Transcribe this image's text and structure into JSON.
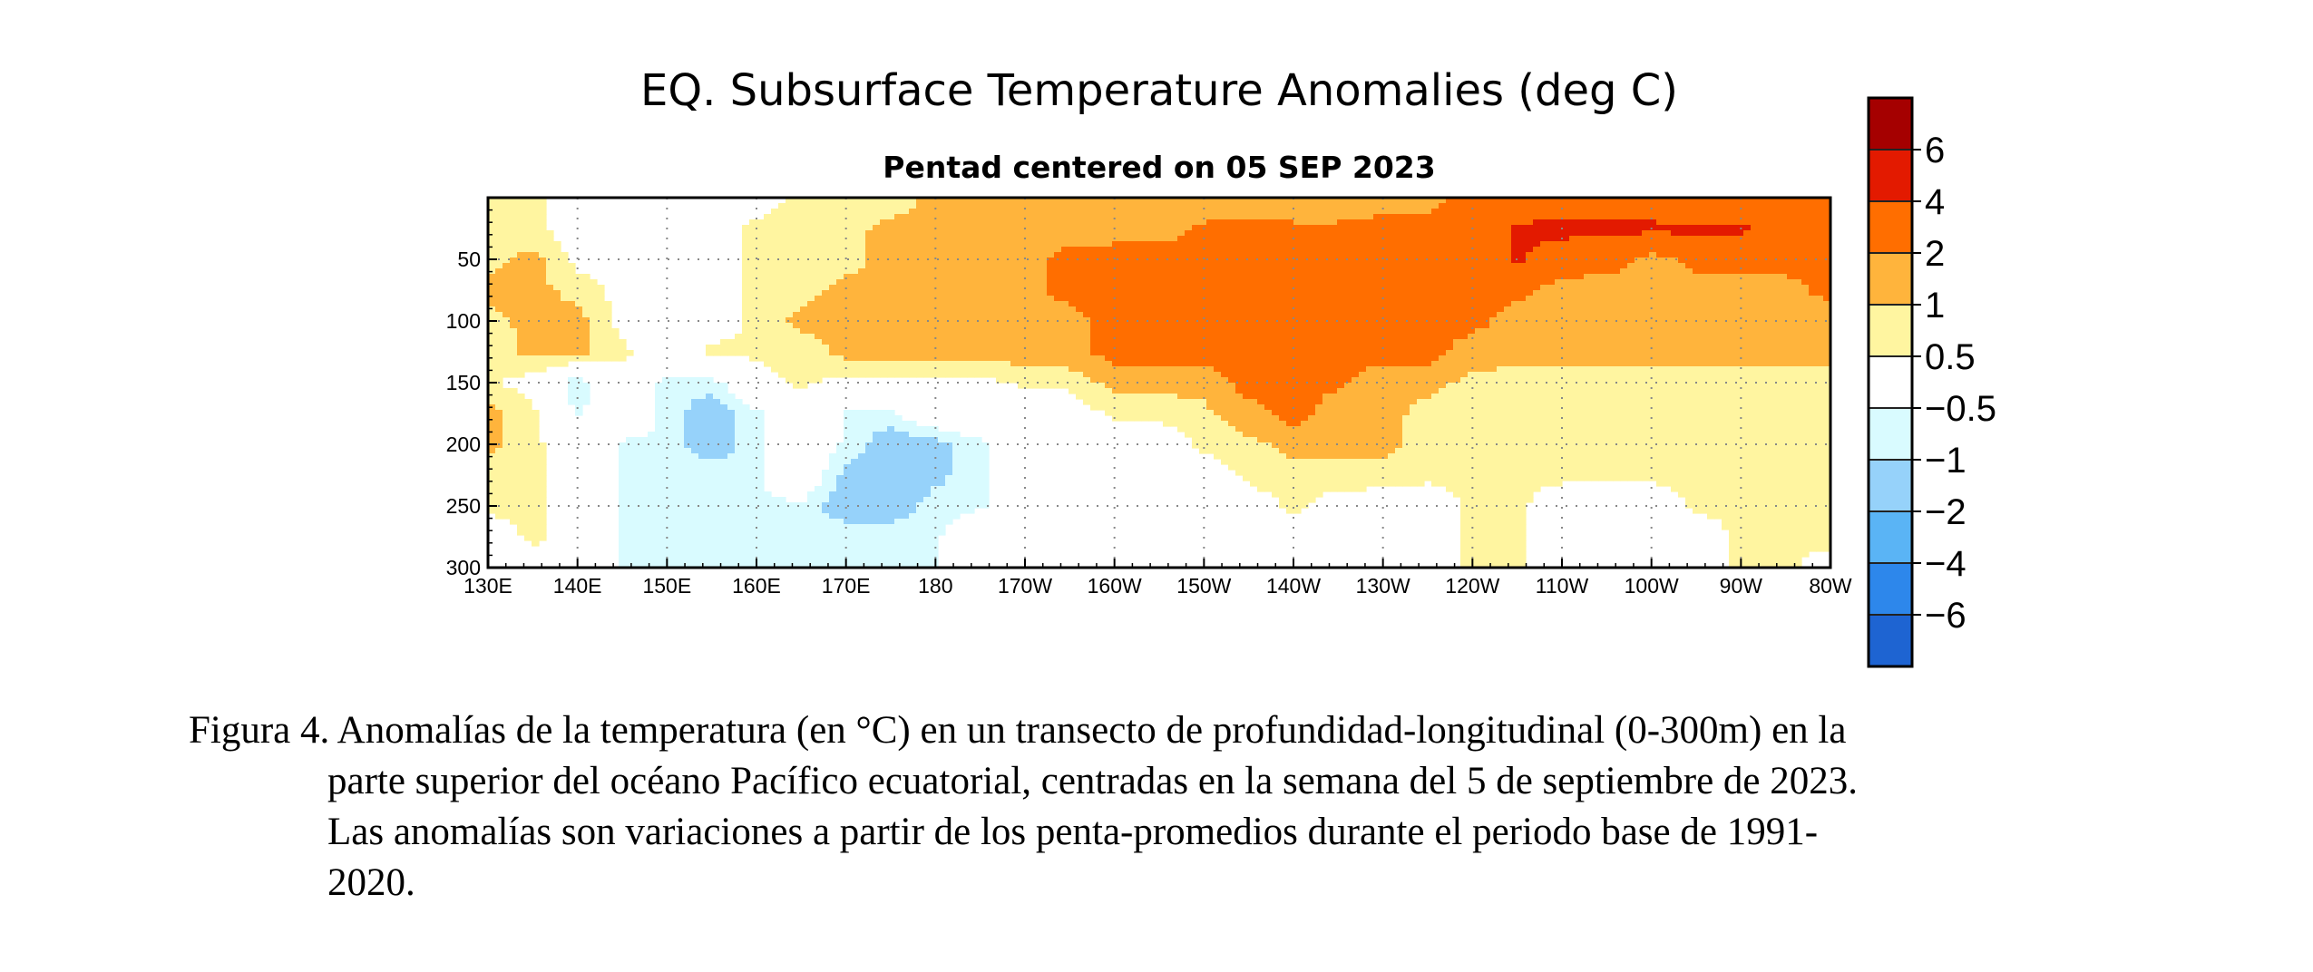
{
  "chart_data": {
    "type": "heatmap",
    "title": "EQ. Subsurface Temperature Anomalies (deg C)",
    "subtitle": "Pentad centered on 05 SEP 2023",
    "x_ticks": [
      "130E",
      "140E",
      "150E",
      "160E",
      "170E",
      "180",
      "170W",
      "160W",
      "150W",
      "140W",
      "130W",
      "120W",
      "110W",
      "100W",
      "90W",
      "80W"
    ],
    "x_tick_values": [
      130,
      140,
      150,
      160,
      170,
      180,
      190,
      200,
      210,
      220,
      230,
      240,
      250,
      260,
      270,
      280
    ],
    "y_ticks": [
      "50",
      "100",
      "150",
      "200",
      "250",
      "300"
    ],
    "y_tick_values": [
      50,
      100,
      150,
      200,
      250,
      300
    ],
    "xlim": [
      130,
      280
    ],
    "ylim": [
      0,
      300
    ],
    "y_inverted": true,
    "grid": true,
    "colorbar": {
      "labels": [
        "6",
        "4",
        "2",
        "1",
        "0.5",
        "−0.5",
        "−1",
        "−2",
        "−4",
        "−6"
      ],
      "colors": [
        "#a50000",
        "#e31a00",
        "#ff6e00",
        "#ffb43c",
        "#fff5a0",
        "#ffffff",
        "#d9fbff",
        "#96d2fa",
        "#5ab4f5",
        "#2d87eb",
        "#1e64d2"
      ],
      "bounds": [
        -6,
        -4,
        -2,
        -1,
        -0.5,
        0.5,
        1,
        2,
        4,
        6
      ]
    },
    "depths": [
      0,
      25,
      50,
      75,
      100,
      125,
      150,
      175,
      200,
      225,
      250,
      275,
      300
    ],
    "longitudes": [
      130,
      135,
      140,
      145,
      150,
      155,
      160,
      165,
      170,
      175,
      180,
      185,
      190,
      195,
      200,
      205,
      210,
      215,
      220,
      225,
      230,
      235,
      240,
      245,
      250,
      255,
      260,
      265,
      270,
      275,
      280
    ],
    "anomaly_grid": [
      [
        0.6,
        0.6,
        0.3,
        0.2,
        0.2,
        0.2,
        0.3,
        0.6,
        0.6,
        0.6,
        1.2,
        1.2,
        1.5,
        1.5,
        1.2,
        1.2,
        1.3,
        1.3,
        1.2,
        1.2,
        1.3,
        1.5,
        2.5,
        2.6,
        2.6,
        2.6,
        2.5,
        2.5,
        2.5,
        2.5,
        2.5
      ],
      [
        0.6,
        0.6,
        0.2,
        0.2,
        0.2,
        0.3,
        0.6,
        0.6,
        0.8,
        1.2,
        1.2,
        1.2,
        1.3,
        1.3,
        1.5,
        1.5,
        2.2,
        2.3,
        2.2,
        2.2,
        2.5,
        2.5,
        2.8,
        4.3,
        4.5,
        4.4,
        4.4,
        4.3,
        4.3,
        2.5,
        2.5
      ],
      [
        0.8,
        1.2,
        0.3,
        0.2,
        0.2,
        0.2,
        0.6,
        0.6,
        0.8,
        1.2,
        1.2,
        1.3,
        1.5,
        2.5,
        2.5,
        2.5,
        2.5,
        2.5,
        2.5,
        2.5,
        2.5,
        2.5,
        2.5,
        4.2,
        3.0,
        2.8,
        1.5,
        2.5,
        2.5,
        2.5,
        2.5
      ],
      [
        1.2,
        1.2,
        0.8,
        0.3,
        0.2,
        0.2,
        0.6,
        0.8,
        1.2,
        1.2,
        1.2,
        1.2,
        1.5,
        2.5,
        2.5,
        2.5,
        2.5,
        2.5,
        2.5,
        2.5,
        2.5,
        2.5,
        2.5,
        2.5,
        1.3,
        1.3,
        1.3,
        1.2,
        1.2,
        1.5,
        2.5
      ],
      [
        0.8,
        1.2,
        1.2,
        0.3,
        0.2,
        0.2,
        0.6,
        1.2,
        1.2,
        1.2,
        1.2,
        1.2,
        1.5,
        1.5,
        2.5,
        2.5,
        2.5,
        2.5,
        2.5,
        2.5,
        2.5,
        2.5,
        2.5,
        1.3,
        1.2,
        1.2,
        1.2,
        1.2,
        1.2,
        1.2,
        1.2
      ],
      [
        0.6,
        1.2,
        1.2,
        0.6,
        0.2,
        0.6,
        0.6,
        0.6,
        1.2,
        1.2,
        1.2,
        1.3,
        1.3,
        1.5,
        2.5,
        2.5,
        2.5,
        2.5,
        2.5,
        2.5,
        2.5,
        2.5,
        1.3,
        1.2,
        1.2,
        1.2,
        1.2,
        1.2,
        1.2,
        1.3,
        1.2
      ],
      [
        0.6,
        0.2,
        -0.8,
        0.3,
        -0.7,
        -0.7,
        0.3,
        0.6,
        0.3,
        0.3,
        0.3,
        0.3,
        0.6,
        0.6,
        1.2,
        1.2,
        1.3,
        2.5,
        2.5,
        2.2,
        1.3,
        1.2,
        0.8,
        0.8,
        0.8,
        0.8,
        0.8,
        0.7,
        0.7,
        0.7,
        0.7
      ],
      [
        1.2,
        0.6,
        -0.6,
        0.2,
        -0.7,
        -1.5,
        -0.6,
        0.2,
        -0.6,
        -0.6,
        0.2,
        0.2,
        0.2,
        0.2,
        0.6,
        0.6,
        0.8,
        1.5,
        2.5,
        1.3,
        1.2,
        0.8,
        0.7,
        0.7,
        0.7,
        0.7,
        0.7,
        0.7,
        0.7,
        0.7,
        0.7
      ],
      [
        1.2,
        0.6,
        0.2,
        -0.6,
        -0.6,
        -1.5,
        -0.6,
        0.2,
        -0.6,
        -1.5,
        -1.2,
        -0.6,
        0.2,
        0.2,
        0.2,
        0.2,
        0.6,
        0.8,
        1.2,
        1.2,
        1.2,
        0.8,
        0.7,
        0.7,
        0.7,
        0.7,
        0.7,
        0.7,
        0.7,
        0.7,
        0.7
      ],
      [
        0.6,
        0.6,
        0.2,
        -0.6,
        -0.6,
        -0.6,
        -0.6,
        0.2,
        -1.2,
        -1.5,
        -1.2,
        -0.6,
        0.2,
        0.2,
        0.2,
        0.2,
        0.2,
        0.6,
        0.8,
        0.8,
        0.7,
        0.6,
        0.6,
        0.6,
        0.6,
        0.6,
        0.6,
        0.6,
        0.6,
        0.7,
        0.7
      ],
      [
        0.6,
        0.6,
        0.2,
        -0.6,
        -0.6,
        -0.6,
        -0.6,
        -0.6,
        -1.5,
        -1.5,
        -0.7,
        -0.6,
        0.2,
        0.2,
        0.2,
        0.2,
        0.2,
        0.2,
        0.6,
        0.2,
        0.2,
        0.2,
        0.6,
        0.6,
        0.2,
        0.2,
        0.2,
        0.6,
        0.6,
        0.6,
        0.7
      ],
      [
        0.2,
        0.6,
        0.2,
        -0.6,
        -0.6,
        -0.6,
        -0.6,
        -0.6,
        -0.6,
        -0.6,
        -0.6,
        0.2,
        0.2,
        0.2,
        0.2,
        0.2,
        0.2,
        0.2,
        0.2,
        0.2,
        0.2,
        0.2,
        0.6,
        0.6,
        0.2,
        0.2,
        0.2,
        0.2,
        0.6,
        0.6,
        0.7
      ],
      [
        0.2,
        0.2,
        0.2,
        -0.6,
        -0.6,
        -0.6,
        -0.6,
        -0.6,
        -0.6,
        -0.6,
        -0.6,
        0.2,
        0.2,
        0.2,
        0.2,
        0.2,
        0.2,
        0.2,
        0.2,
        0.2,
        0.2,
        0.2,
        0.6,
        0.6,
        0.2,
        0.2,
        0.2,
        0.2,
        0.6,
        0.6,
        0.2
      ]
    ]
  },
  "caption": {
    "line1": "Figura 4. Anomalías de la temperatura (en °C) en un transecto de profundidad-longitudinal (0-300m) en la",
    "line2": "parte superior del océano Pacífico ecuatorial, centradas en la semana del 5 de septiembre de 2023.",
    "line3": "Las anomalías son variaciones a partir de los penta-promedios durante el periodo base de 1991-",
    "line4": "2020."
  }
}
